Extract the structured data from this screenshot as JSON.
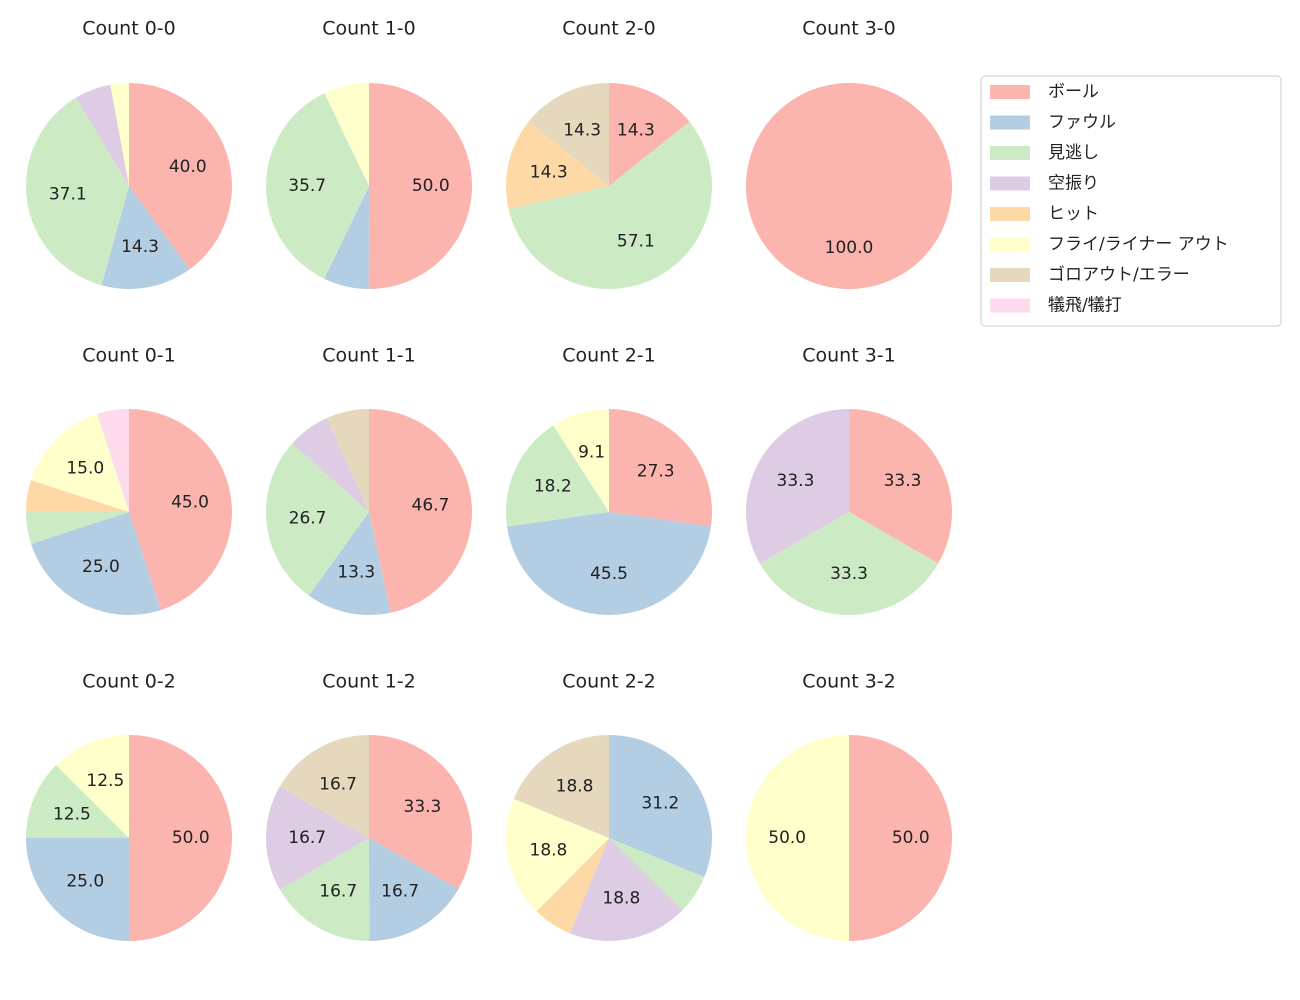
{
  "chart_data": {
    "type": "pie",
    "categories": [
      "ボール",
      "ファウル",
      "見逃し",
      "空振り",
      "ヒット",
      "フライ/ライナー アウト",
      "ゴロアウト/エラー",
      "犠飛/犠打"
    ],
    "colors": [
      "#fbb4ae",
      "#b3cde3",
      "#ccebc5",
      "#decbe4",
      "#fed9a6",
      "#ffffcc",
      "#e5d8bd",
      "#fddaec"
    ],
    "legend": "upper right",
    "charts": [
      {
        "title": "Count 0-0",
        "values": [
          40.0,
          14.3,
          37.1,
          5.7,
          0,
          2.9,
          0,
          0
        ],
        "value_labels": [
          "40.0",
          "14.3",
          "37.1",
          null,
          null,
          null,
          null,
          null
        ]
      },
      {
        "title": "Count 1-0",
        "values": [
          50.0,
          7.1,
          35.7,
          0,
          0,
          7.1,
          0,
          0
        ],
        "value_labels": [
          "50.0",
          null,
          "35.7",
          null,
          null,
          null,
          null,
          null
        ]
      },
      {
        "title": "Count 2-0",
        "values": [
          14.3,
          0,
          57.1,
          0,
          14.3,
          0,
          14.3,
          0
        ],
        "value_labels": [
          "14.3",
          null,
          "57.1",
          null,
          "14.3",
          null,
          "14.3",
          null
        ]
      },
      {
        "title": "Count 3-0",
        "values": [
          100.0,
          0,
          0,
          0,
          0,
          0,
          0,
          0
        ],
        "value_labels": [
          "100.0",
          null,
          null,
          null,
          null,
          null,
          null,
          null
        ]
      },
      {
        "title": "Count 0-1",
        "values": [
          45.0,
          25.0,
          5.0,
          0,
          5.0,
          15.0,
          0,
          5.0
        ],
        "value_labels": [
          "45.0",
          "25.0",
          null,
          null,
          null,
          "15.0",
          null,
          null
        ]
      },
      {
        "title": "Count 1-1",
        "values": [
          46.7,
          13.3,
          26.7,
          6.7,
          0,
          0,
          6.7,
          0
        ],
        "value_labels": [
          "46.7",
          "13.3",
          "26.7",
          null,
          null,
          null,
          null,
          null
        ]
      },
      {
        "title": "Count 2-1",
        "values": [
          27.3,
          45.5,
          18.2,
          0,
          0,
          9.1,
          0,
          0
        ],
        "value_labels": [
          "27.3",
          "45.5",
          "18.2",
          null,
          null,
          "9.1",
          null,
          null
        ]
      },
      {
        "title": "Count 3-1",
        "values": [
          33.3,
          0,
          33.3,
          33.3,
          0,
          0,
          0,
          0
        ],
        "value_labels": [
          "33.3",
          null,
          "33.3",
          "33.3",
          null,
          null,
          null,
          null
        ]
      },
      {
        "title": "Count 0-2",
        "values": [
          50.0,
          25.0,
          12.5,
          0,
          0,
          12.5,
          0,
          0
        ],
        "value_labels": [
          "50.0",
          "25.0",
          "12.5",
          null,
          null,
          "12.5",
          null,
          null
        ]
      },
      {
        "title": "Count 1-2",
        "values": [
          33.3,
          16.7,
          16.7,
          16.7,
          0,
          0,
          16.7,
          0
        ],
        "value_labels": [
          "33.3",
          "16.7",
          "16.7",
          "16.7",
          null,
          null,
          "16.7",
          null
        ]
      },
      {
        "title": "Count 2-2",
        "values": [
          0,
          31.2,
          6.2,
          18.8,
          6.2,
          18.8,
          18.8,
          0
        ],
        "value_labels": [
          null,
          "31.2",
          null,
          "18.8",
          null,
          "18.8",
          "18.8",
          null
        ]
      },
      {
        "title": "Count 3-2",
        "values": [
          50.0,
          0,
          0,
          0,
          0,
          50.0,
          0,
          0
        ],
        "value_labels": [
          "50.0",
          null,
          null,
          null,
          null,
          "50.0",
          null,
          null
        ]
      }
    ]
  }
}
